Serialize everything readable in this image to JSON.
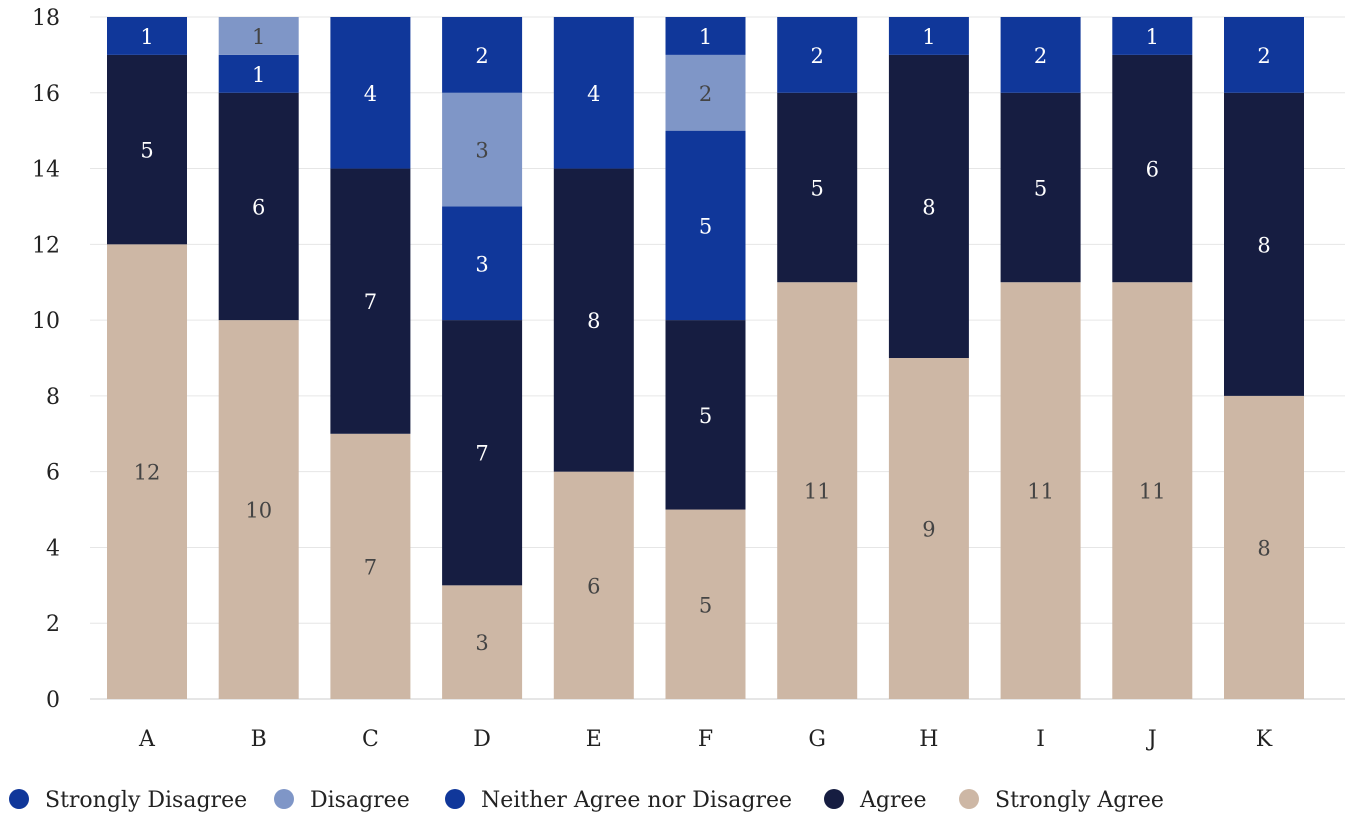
{
  "chart_data": {
    "type": "bar",
    "stacked": true,
    "categories": [
      "A",
      "B",
      "C",
      "D",
      "E",
      "F",
      "G",
      "H",
      "I",
      "J",
      "K"
    ],
    "ylim": [
      0,
      18
    ],
    "yticks": [
      0,
      2,
      4,
      6,
      8,
      10,
      12,
      14,
      16,
      18
    ],
    "grid": true,
    "legend_position": "bottom",
    "series": [
      {
        "name": "Strongly Agree",
        "color": "#cdb7a5",
        "label_color": "#444444",
        "values": [
          12,
          10,
          7,
          3,
          6,
          5,
          11,
          9,
          11,
          11,
          8
        ]
      },
      {
        "name": "Agree",
        "color": "#161d41",
        "label_color": "#ffffff",
        "values": [
          5,
          6,
          7,
          7,
          8,
          5,
          5,
          8,
          5,
          6,
          8
        ]
      },
      {
        "name": "Neither Agree nor Disagree",
        "color": "#10379a",
        "label_color": "#ffffff",
        "values": [
          0,
          0,
          0,
          3,
          0,
          5,
          0,
          0,
          0,
          0,
          0
        ]
      },
      {
        "name": "Disagree",
        "color": "#7f96c7",
        "label_color": "#444444",
        "values": [
          0,
          0,
          0,
          3,
          0,
          2,
          0,
          0,
          0,
          0,
          0
        ]
      },
      {
        "name": "Strongly Disagree",
        "color": "#10379a",
        "label_color": "#ffffff",
        "values": [
          1,
          1,
          4,
          2,
          4,
          1,
          2,
          1,
          2,
          1,
          2
        ]
      }
    ],
    "extra_segments": [
      {
        "category": "B",
        "series": "Disagree",
        "value": 1,
        "stack_after": "Strongly Disagree"
      }
    ],
    "legend_order": [
      "Strongly Disagree",
      "Disagree",
      "Neither Agree nor Disagree",
      "Agree",
      "Strongly Agree"
    ],
    "legend_colors": {
      "Strongly Disagree": "#10379a",
      "Disagree": "#7f96c7",
      "Neither Agree nor Disagree": "#10379a",
      "Agree": "#161d41",
      "Strongly Agree": "#cdb7a5"
    }
  }
}
